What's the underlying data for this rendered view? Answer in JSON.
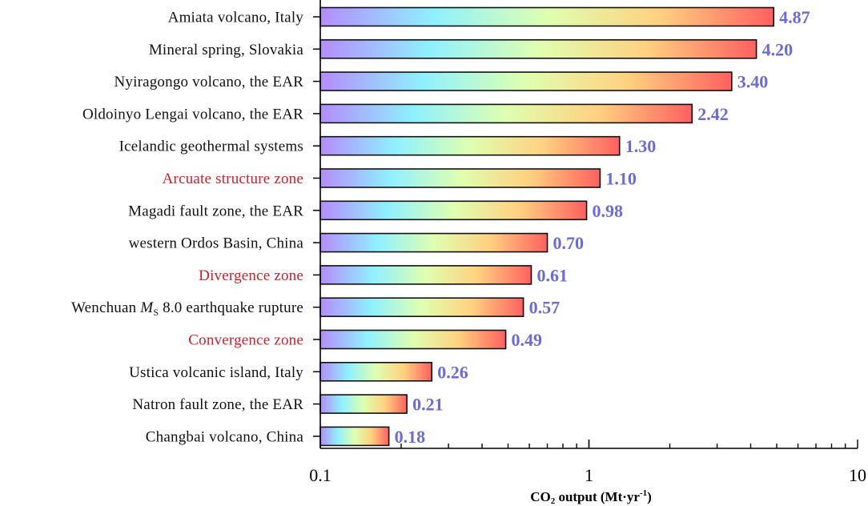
{
  "chart_data": {
    "type": "bar",
    "orientation": "horizontal",
    "x_scale": "log",
    "xlim": [
      0.1,
      10
    ],
    "grid": false,
    "xlabel": {
      "prefix": "CO",
      "subscript": "2",
      "suffix": " output (Mt·yr",
      "superscript": "-1",
      "close": ")"
    },
    "x_ticks": [
      "0.1",
      "1",
      "10"
    ],
    "categories": [
      {
        "label": "Amiata volcano, Italy",
        "value": 4.87,
        "value_label": "4.87",
        "highlight": false
      },
      {
        "label": "Mineral spring, Slovakia",
        "value": 4.2,
        "value_label": "4.20",
        "highlight": false
      },
      {
        "label": "Nyiragongo volcano, the EAR",
        "value": 3.4,
        "value_label": "3.40",
        "highlight": false
      },
      {
        "label": "Oldoinyo Lengai volcano, the EAR",
        "value": 2.42,
        "value_label": "2.42",
        "highlight": false
      },
      {
        "label": "Icelandic geothermal systems",
        "value": 1.3,
        "value_label": "1.30",
        "highlight": false
      },
      {
        "label": "Arcuate structure zone",
        "value": 1.1,
        "value_label": "1.10",
        "highlight": true
      },
      {
        "label": "Magadi fault zone, the EAR",
        "value": 0.98,
        "value_label": "0.98",
        "highlight": false
      },
      {
        "label": "western Ordos Basin, China",
        "value": 0.7,
        "value_label": "0.70",
        "highlight": false
      },
      {
        "label": "Divergence zone",
        "value": 0.61,
        "value_label": "0.61",
        "highlight": true
      },
      {
        "label_pre": "Wenchuan ",
        "label_italic": "M",
        "label_sub": "S",
        "label_post": " 8.0 earthquake rupture",
        "value": 0.57,
        "value_label": "0.57",
        "highlight": false
      },
      {
        "label": "Convergence zone",
        "value": 0.49,
        "value_label": "0.49",
        "highlight": true
      },
      {
        "label": "Ustica volcanic island, Italy",
        "value": 0.26,
        "value_label": "0.26",
        "highlight": false
      },
      {
        "label": "Natron fault zone, the EAR",
        "value": 0.21,
        "value_label": "0.21",
        "highlight": false
      },
      {
        "label": "Changbai volcano, China",
        "value": 0.18,
        "value_label": "0.18",
        "highlight": false
      }
    ],
    "colors": {
      "label_normal": "#111111",
      "label_highlight": "#d0202a",
      "value_label": "#6a6ad8",
      "bar_stroke": "#111111",
      "gradient": [
        "#b48cff",
        "#8ff0ff",
        "#dfffb0",
        "#ffd080",
        "#ff6060"
      ]
    }
  }
}
